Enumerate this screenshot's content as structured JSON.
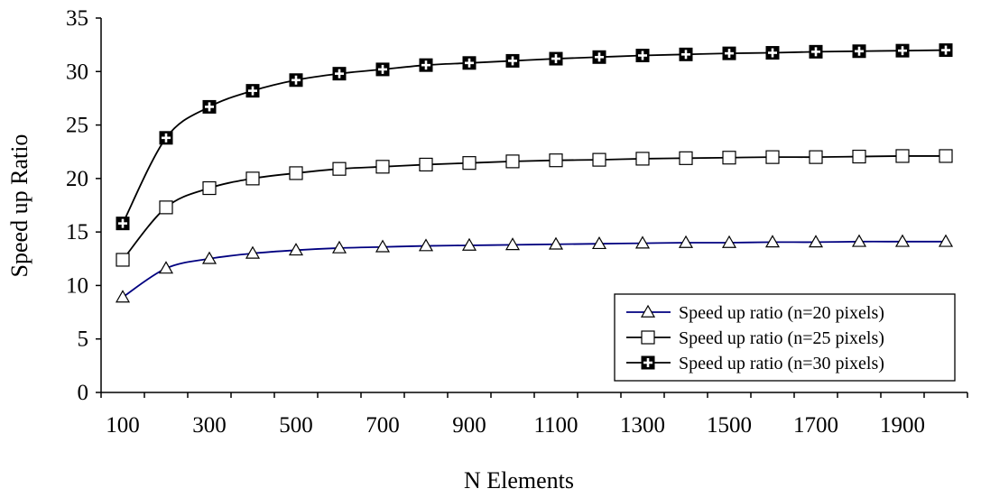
{
  "chart_data": {
    "type": "line",
    "title": "",
    "xlabel": "N Elements",
    "ylabel": "Speed up Ratio",
    "x": [
      100,
      200,
      300,
      400,
      500,
      600,
      700,
      800,
      900,
      1000,
      1100,
      1200,
      1300,
      1400,
      1500,
      1600,
      1700,
      1800,
      1900,
      2000
    ],
    "x_tick_labels": [
      "100",
      "300",
      "500",
      "700",
      "900",
      "1100",
      "1300",
      "1500",
      "1700",
      "1900"
    ],
    "y_tick_labels": [
      "0",
      "5",
      "10",
      "15",
      "20",
      "25",
      "30",
      "35"
    ],
    "ylim": [
      0,
      35
    ],
    "grid": false,
    "legend_position": "bottom-right",
    "series": [
      {
        "name": "Speed up ratio (n=20 pixels)",
        "marker": "triangle",
        "color": "#000080",
        "values": [
          8.9,
          11.6,
          12.5,
          13.0,
          13.3,
          13.5,
          13.6,
          13.7,
          13.75,
          13.8,
          13.85,
          13.9,
          13.95,
          14.0,
          14.0,
          14.05,
          14.05,
          14.1,
          14.1,
          14.1
        ]
      },
      {
        "name": "Speed up ratio (n=25 pixels)",
        "marker": "square",
        "color": "#000000",
        "values": [
          12.4,
          17.3,
          19.1,
          20.0,
          20.5,
          20.9,
          21.1,
          21.3,
          21.45,
          21.6,
          21.7,
          21.75,
          21.85,
          21.9,
          21.95,
          22.0,
          22.0,
          22.05,
          22.1,
          22.1
        ]
      },
      {
        "name": "Speed up ratio (n=30 pixels)",
        "marker": "square-cross",
        "color": "#000000",
        "values": [
          15.8,
          23.8,
          26.7,
          28.2,
          29.2,
          29.8,
          30.2,
          30.6,
          30.8,
          31.0,
          31.2,
          31.35,
          31.5,
          31.6,
          31.7,
          31.75,
          31.85,
          31.9,
          31.95,
          32.0
        ]
      }
    ]
  }
}
